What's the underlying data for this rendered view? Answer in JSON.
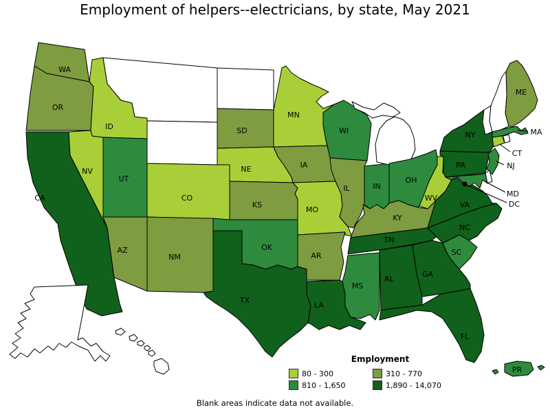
{
  "title": "Employment of helpers--electricians, by state, May 2021",
  "footnote": "Blank areas indicate data not available.",
  "legend": {
    "title": "Employment",
    "bins": [
      {
        "label": "80 - 300",
        "color": "#A9CF38"
      },
      {
        "label": "310 - 770",
        "color": "#7E9C40"
      },
      {
        "label": "810 - 1,650",
        "color": "#2E8B3D"
      },
      {
        "label": "1,890 - 14,070",
        "color": "#10611B"
      }
    ]
  },
  "map": {
    "stroke_color": "#000000",
    "no_data_fill": "#ffffff",
    "states": [
      {
        "abbr": "WA",
        "bin": 2,
        "label": [
          94,
          101
        ]
      },
      {
        "abbr": "OR",
        "bin": 2,
        "label": [
          84,
          156
        ]
      },
      {
        "abbr": "CA",
        "bin": 4,
        "label": [
          58,
          288
        ]
      },
      {
        "abbr": "NV",
        "bin": 1,
        "label": [
          127,
          249
        ]
      },
      {
        "abbr": "ID",
        "bin": 1,
        "label": [
          159,
          184
        ]
      },
      {
        "abbr": "MT",
        "bin": null
      },
      {
        "abbr": "WY",
        "bin": null
      },
      {
        "abbr": "UT",
        "bin": 3,
        "label": [
          180,
          260
        ]
      },
      {
        "abbr": "AZ",
        "bin": 2,
        "label": [
          178,
          364
        ]
      },
      {
        "abbr": "CO",
        "bin": 1,
        "label": [
          272,
          288
        ]
      },
      {
        "abbr": "NM",
        "bin": 2,
        "label": [
          254,
          374
        ]
      },
      {
        "abbr": "ND",
        "bin": null
      },
      {
        "abbr": "SD",
        "bin": 2,
        "label": [
          352,
          190
        ]
      },
      {
        "abbr": "NE",
        "bin": 1,
        "label": [
          358,
          246
        ]
      },
      {
        "abbr": "KS",
        "bin": 2,
        "label": [
          374,
          298
        ]
      },
      {
        "abbr": "OK",
        "bin": 3,
        "label": [
          388,
          360
        ]
      },
      {
        "abbr": "TX",
        "bin": 4,
        "label": [
          356,
          437
        ]
      },
      {
        "abbr": "MN",
        "bin": 1,
        "label": [
          427,
          167
        ]
      },
      {
        "abbr": "IA",
        "bin": 2,
        "label": [
          442,
          240
        ]
      },
      {
        "abbr": "MO",
        "bin": 1,
        "label": [
          454,
          305
        ]
      },
      {
        "abbr": "AR",
        "bin": 2,
        "label": [
          460,
          372
        ]
      },
      {
        "abbr": "LA",
        "bin": 4,
        "label": [
          464,
          444
        ]
      },
      {
        "abbr": "WI",
        "bin": 3,
        "label": [
          500,
          190
        ]
      },
      {
        "abbr": "IL",
        "bin": 2,
        "label": [
          504,
          274
        ]
      },
      {
        "abbr": "IN",
        "bin": 3,
        "label": [
          548,
          271
        ]
      },
      {
        "abbr": "MI",
        "bin": null
      },
      {
        "abbr": "OH",
        "bin": 3,
        "label": [
          598,
          262
        ]
      },
      {
        "abbr": "KY",
        "bin": 2,
        "label": [
          578,
          317
        ]
      },
      {
        "abbr": "TN",
        "bin": 4,
        "label": [
          566,
          349
        ]
      },
      {
        "abbr": "MS",
        "bin": 3,
        "label": [
          520,
          416
        ]
      },
      {
        "abbr": "AL",
        "bin": 4,
        "label": [
          566,
          406
        ]
      },
      {
        "abbr": "GA",
        "bin": 4,
        "label": [
          622,
          399
        ]
      },
      {
        "abbr": "FL",
        "bin": 4,
        "label": [
          676,
          490
        ]
      },
      {
        "abbr": "SC",
        "bin": 3,
        "label": [
          664,
          367
        ]
      },
      {
        "abbr": "NC",
        "bin": 4,
        "label": [
          676,
          331
        ]
      },
      {
        "abbr": "VA",
        "bin": 4,
        "label": [
          676,
          298
        ]
      },
      {
        "abbr": "WV",
        "bin": 1,
        "label": [
          627,
          288
        ]
      },
      {
        "abbr": "PA",
        "bin": 4,
        "label": [
          670,
          240
        ]
      },
      {
        "abbr": "NY",
        "bin": 4,
        "label": [
          684,
          196
        ]
      },
      {
        "abbr": "VT",
        "bin": null
      },
      {
        "abbr": "NH",
        "bin": null
      },
      {
        "abbr": "ME",
        "bin": 2,
        "label": [
          758,
          134
        ]
      },
      {
        "abbr": "MA",
        "bin": 3,
        "label": [
          780,
          192
        ],
        "leader": [
          [
            768,
            191
          ],
          [
            752,
            190
          ]
        ]
      },
      {
        "abbr": "RI",
        "bin": null
      },
      {
        "abbr": "CT",
        "bin": 1,
        "label": [
          752,
          223
        ],
        "leader": [
          [
            742,
            221
          ],
          [
            727,
            210
          ]
        ]
      },
      {
        "abbr": "NJ",
        "bin": 3,
        "label": [
          743,
          241
        ],
        "leader": [
          [
            733,
            240
          ],
          [
            722,
            235
          ]
        ]
      },
      {
        "abbr": "DE",
        "bin": null
      },
      {
        "abbr": "MD",
        "bin": 3,
        "label": [
          746,
          282
        ],
        "leader": [
          [
            735,
            280
          ],
          [
            703,
            263
          ]
        ]
      },
      {
        "abbr": "DC",
        "bin": null,
        "dot": [
          676,
          268
        ],
        "label": [
          748,
          297
        ],
        "leader": [
          [
            737,
            295
          ],
          [
            680,
            270
          ]
        ]
      },
      {
        "abbr": "AK",
        "bin": null
      },
      {
        "abbr": "HI",
        "bin": null
      },
      {
        "abbr": "PR",
        "bin": 3,
        "label": [
          752,
          538
        ]
      }
    ]
  }
}
